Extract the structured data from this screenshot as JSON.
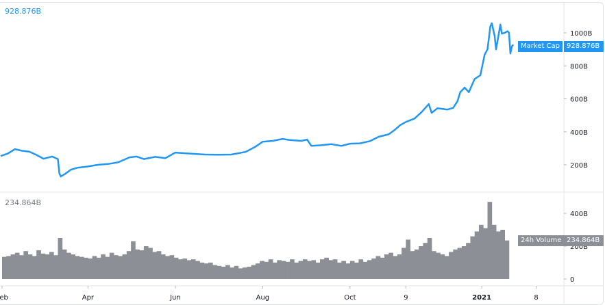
{
  "chart_data": [
    {
      "type": "line",
      "series": [
        {
          "name": "Market Cap",
          "color": "#2196f3"
        }
      ],
      "legend_value": "928.876B",
      "last_value_label": "928.876B",
      "y_unit": "B",
      "ylim": [
        0,
        1150
      ],
      "y_ticks": [
        "200B",
        "400B",
        "600B",
        "800B",
        "1000B"
      ],
      "points": [
        [
          "2020-01-31",
          253
        ],
        [
          "2020-02-05",
          268
        ],
        [
          "2020-02-10",
          295
        ],
        [
          "2020-02-15",
          285
        ],
        [
          "2020-02-20",
          280
        ],
        [
          "2020-02-25",
          260
        ],
        [
          "2020-03-01",
          237
        ],
        [
          "2020-03-07",
          250
        ],
        [
          "2020-03-11",
          235
        ],
        [
          "2020-03-12",
          150
        ],
        [
          "2020-03-13",
          129
        ],
        [
          "2020-03-16",
          145
        ],
        [
          "2020-03-20",
          170
        ],
        [
          "2020-03-25",
          183
        ],
        [
          "2020-04-01",
          190
        ],
        [
          "2020-04-08",
          200
        ],
        [
          "2020-04-15",
          205
        ],
        [
          "2020-04-22",
          215
        ],
        [
          "2020-04-30",
          245
        ],
        [
          "2020-05-05",
          250
        ],
        [
          "2020-05-10",
          235
        ],
        [
          "2020-05-18",
          248
        ],
        [
          "2020-05-25",
          240
        ],
        [
          "2020-06-01",
          274
        ],
        [
          "2020-06-08",
          270
        ],
        [
          "2020-06-15",
          266
        ],
        [
          "2020-06-22",
          262
        ],
        [
          "2020-07-01",
          261
        ],
        [
          "2020-07-10",
          262
        ],
        [
          "2020-07-20",
          278
        ],
        [
          "2020-07-27",
          310
        ],
        [
          "2020-08-01",
          340
        ],
        [
          "2020-08-08",
          345
        ],
        [
          "2020-08-15",
          357
        ],
        [
          "2020-08-20",
          350
        ],
        [
          "2020-08-28",
          345
        ],
        [
          "2020-09-01",
          353
        ],
        [
          "2020-09-04",
          315
        ],
        [
          "2020-09-10",
          318
        ],
        [
          "2020-09-18",
          325
        ],
        [
          "2020-09-25",
          315
        ],
        [
          "2020-10-01",
          328
        ],
        [
          "2020-10-08",
          330
        ],
        [
          "2020-10-15",
          344
        ],
        [
          "2020-10-21",
          370
        ],
        [
          "2020-10-28",
          385
        ],
        [
          "2020-11-01",
          410
        ],
        [
          "2020-11-05",
          440
        ],
        [
          "2020-11-09",
          460
        ],
        [
          "2020-11-15",
          480
        ],
        [
          "2020-11-20",
          520
        ],
        [
          "2020-11-25",
          568
        ],
        [
          "2020-11-27",
          515
        ],
        [
          "2020-12-01",
          543
        ],
        [
          "2020-12-08",
          535
        ],
        [
          "2020-12-12",
          545
        ],
        [
          "2020-12-15",
          585
        ],
        [
          "2020-12-17",
          640
        ],
        [
          "2020-12-20",
          668
        ],
        [
          "2020-12-23",
          640
        ],
        [
          "2020-12-27",
          720
        ],
        [
          "2020-12-31",
          743
        ],
        [
          "2021-01-03",
          867
        ],
        [
          "2021-01-05",
          900
        ],
        [
          "2021-01-07",
          1040
        ],
        [
          "2021-01-08",
          1058
        ],
        [
          "2021-01-10",
          980
        ],
        [
          "2021-01-11",
          900
        ],
        [
          "2021-01-12",
          950
        ],
        [
          "2021-01-14",
          1050
        ],
        [
          "2021-01-15",
          995
        ],
        [
          "2021-01-17",
          1000
        ],
        [
          "2021-01-19",
          1010
        ],
        [
          "2021-01-20",
          1000
        ],
        [
          "2021-01-21",
          875
        ],
        [
          "2021-01-22",
          917
        ],
        [
          "2021-01-23",
          928.876
        ]
      ]
    },
    {
      "type": "bar",
      "series": [
        {
          "name": "24h Volume",
          "color": "#8c8f96"
        }
      ],
      "legend_value": "234.864B",
      "last_value_label": "234.864B",
      "ylim": [
        0,
        500
      ],
      "y_ticks": [
        "0",
        "200B",
        "400B"
      ],
      "start_date": "2020-02-01",
      "interval_days": 3,
      "values": [
        135,
        140,
        150,
        160,
        145,
        170,
        150,
        140,
        175,
        155,
        150,
        165,
        145,
        250,
        180,
        160,
        150,
        140,
        135,
        130,
        125,
        140,
        130,
        150,
        135,
        160,
        145,
        140,
        150,
        170,
        230,
        180,
        175,
        200,
        190,
        165,
        170,
        150,
        140,
        145,
        130,
        120,
        125,
        115,
        120,
        110,
        100,
        95,
        100,
        85,
        80,
        75,
        85,
        70,
        80,
        65,
        70,
        75,
        85,
        95,
        110,
        105,
        120,
        100,
        115,
        110,
        105,
        120,
        100,
        110,
        120,
        110,
        115,
        100,
        120,
        130,
        115,
        120,
        100,
        110,
        95,
        110,
        100,
        120,
        105,
        115,
        125,
        140,
        130,
        150,
        160,
        140,
        150,
        190,
        240,
        170,
        180,
        200,
        220,
        250,
        170,
        160,
        150,
        140,
        165,
        180,
        190,
        200,
        220,
        260,
        290,
        330,
        310,
        470,
        330,
        290,
        300,
        235
      ]
    }
  ],
  "x_ticks": [
    {
      "label": "Feb",
      "date": "2020-02-01"
    },
    {
      "label": "Apr",
      "date": "2020-04-01"
    },
    {
      "label": "Jun",
      "date": "2020-06-01"
    },
    {
      "label": "Aug",
      "date": "2020-08-01"
    },
    {
      "label": "Oct",
      "date": "2020-10-01"
    },
    {
      "label": "9",
      "date": "2020-11-09"
    },
    {
      "label": "2021",
      "date": "2021-01-01"
    },
    {
      "label": "8",
      "date": "2021-02-08"
    }
  ]
}
